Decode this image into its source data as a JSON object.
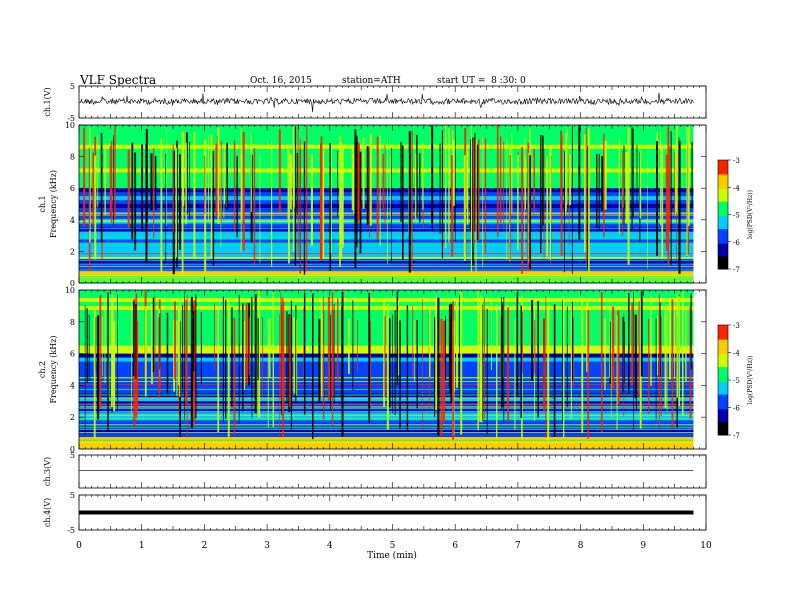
{
  "header": {
    "title": "VLF Spectra",
    "date": "Oct. 16, 2015",
    "station": "station=ATH",
    "start": "start UT =  8 :30: 0"
  },
  "chart_data": [
    {
      "type": "line",
      "ylabel": "ch.1(V)",
      "yticks": [
        "5",
        "-5"
      ],
      "ylim": [
        -5,
        5
      ],
      "xlim": [
        0,
        10
      ],
      "trace_end_min": 9.8,
      "trace_level": 0.2,
      "trace_style": "noisy"
    },
    {
      "type": "heatmap",
      "ylabel": "ch.1\nFrequency (kHz)",
      "ylabel_top": "ch.1",
      "ylabel_bottom": "Frequency (kHz)",
      "yticks": [
        "0",
        "2",
        "4",
        "6",
        "8",
        "10"
      ],
      "ylim": [
        0,
        10
      ],
      "xlim": [
        0,
        10
      ],
      "data_end_min": 9.8,
      "colorbar": {
        "label": "log(PSD(V²/Hz))",
        "ticks": [
          "-3",
          "-4",
          "-5",
          "-6",
          "-7"
        ],
        "range": [
          -7,
          -3
        ]
      }
    },
    {
      "type": "heatmap",
      "ylabel": "ch.2\nFrequency (kHz)",
      "ylabel_top": "ch.2",
      "ylabel_bottom": "Frequency (kHz)",
      "yticks": [
        "0",
        "2",
        "4",
        "6",
        "8",
        "10"
      ],
      "ylim": [
        0,
        10
      ],
      "xlim": [
        0,
        10
      ],
      "data_end_min": 9.8,
      "colorbar": {
        "label": "log(PSD(V²/Hz))",
        "ticks": [
          "-3",
          "-4",
          "-5",
          "-6",
          "-7"
        ],
        "range": [
          -7,
          -3
        ]
      }
    },
    {
      "type": "line",
      "ylabel": "ch.3(V)",
      "yticks": [
        "5"
      ],
      "ylim": [
        -5,
        5
      ],
      "xlim": [
        0,
        10
      ],
      "trace_end_min": 9.8,
      "trace_level": 0.3,
      "trace_style": "flat"
    },
    {
      "type": "line",
      "ylabel": "ch.4(V)",
      "yticks": [
        "5",
        "-5"
      ],
      "ylim": [
        -5,
        5
      ],
      "xlim": [
        0,
        10
      ],
      "trace_end_min": 9.8,
      "trace_level": 0.0,
      "trace_style": "thick"
    }
  ],
  "xaxis": {
    "label": "Time (min)",
    "ticks": [
      "0",
      "1",
      "2",
      "3",
      "4",
      "5",
      "6",
      "7",
      "8",
      "9",
      "10"
    ]
  },
  "colors": {
    "colormap": [
      "#000000",
      "#0000aa",
      "#0044ff",
      "#00ccff",
      "#00ff66",
      "#ccff00",
      "#ffcc00",
      "#ff2200",
      "#ffffff"
    ]
  }
}
